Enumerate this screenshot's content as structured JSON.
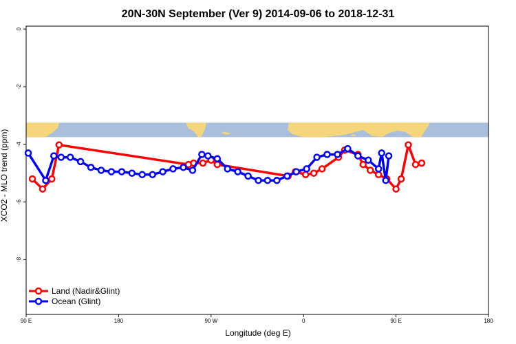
{
  "chart_data": {
    "type": "line",
    "title": "20N-30N September (Ver 9)   2014-09-06 to 2018-12-31",
    "xlabel": "Longitude (deg E)",
    "ylabel": "XCO2 - MLO trend (ppm)",
    "xlim": [
      90,
      540
    ],
    "ylim": [
      -9.9,
      0.1
    ],
    "x_tick_values": [
      90,
      180,
      270,
      360,
      450,
      540
    ],
    "x_tick_labels": [
      "90 E",
      "180",
      "90 W",
      "0",
      "90 E",
      "180"
    ],
    "y_tick_values": [
      0,
      -2,
      -4,
      -6,
      -8
    ],
    "y_tick_labels": [
      "0",
      "-2",
      "-4",
      "-6",
      "-8"
    ],
    "legend_position": "bottom-left",
    "map_band": {
      "y_top": -3.25,
      "y_bottom": -3.75,
      "ocean_color": "#a9bfdc",
      "land_color": "#f6d67a"
    },
    "series": [
      {
        "name": "Land (Nadir&Glint)",
        "color": "#ff0000",
        "x": [
          96,
          106,
          115,
          122,
          248,
          253,
          262,
          270,
          276,
          345,
          352,
          362,
          370,
          378,
          394,
          400,
          413,
          418,
          425,
          433,
          441,
          450,
          455,
          462,
          469,
          475
        ],
        "y": [
          -5.2,
          -5.55,
          -5.2,
          -4.02,
          -4.7,
          -4.65,
          -4.65,
          -4.55,
          -4.7,
          -5.1,
          -4.95,
          -5.05,
          -5.0,
          -4.85,
          -4.45,
          -4.2,
          -4.35,
          -4.7,
          -4.9,
          -5.05,
          -5.2,
          -5.55,
          -5.2,
          -4.02,
          -4.7,
          -4.65
        ]
      },
      {
        "name": "Ocean (Glint)",
        "color": "#0000ff",
        "x": [
          92,
          109,
          117,
          124,
          133,
          143,
          153,
          163,
          173,
          183,
          193,
          203,
          213,
          223,
          233,
          243,
          252,
          261,
          267,
          276,
          286,
          296,
          306,
          316,
          325,
          334,
          344,
          353,
          363,
          373,
          383,
          393,
          403,
          413,
          423,
          433,
          436,
          440,
          443
        ],
        "y": [
          -4.3,
          -5.25,
          -4.4,
          -4.45,
          -4.45,
          -4.6,
          -4.8,
          -4.9,
          -4.95,
          -4.95,
          -5.0,
          -5.05,
          -5.05,
          -4.95,
          -4.85,
          -4.8,
          -4.9,
          -4.35,
          -4.4,
          -4.5,
          -4.85,
          -4.95,
          -5.1,
          -5.25,
          -5.25,
          -5.25,
          -5.1,
          -4.95,
          -4.85,
          -4.45,
          -4.35,
          -4.35,
          -4.15,
          -4.4,
          -4.55,
          -4.85,
          -4.3,
          -5.25,
          -4.4
        ]
      }
    ]
  }
}
